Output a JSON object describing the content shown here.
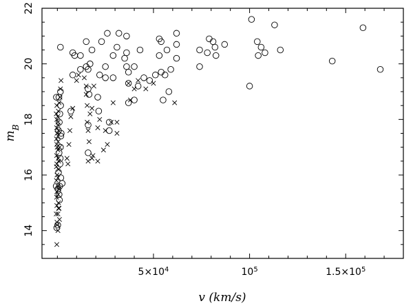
{
  "chart_data": {
    "type": "scatter",
    "title": "",
    "xlabel": "v (km/s)",
    "ylabel_main": "m",
    "ylabel_sub": "B",
    "xlim": [
      -8000,
      180000
    ],
    "ylim": [
      13,
      22
    ],
    "x_ticks": [
      {
        "value": 50000,
        "label": "5×10",
        "exp": "4"
      },
      {
        "value": 100000,
        "label": "10",
        "exp": "5"
      },
      {
        "value": 150000,
        "label": "1.5×10",
        "exp": "5"
      }
    ],
    "y_ticks": [
      {
        "value": 14,
        "label": "14"
      },
      {
        "value": 16,
        "label": "16"
      },
      {
        "value": 18,
        "label": "18"
      },
      {
        "value": 20,
        "label": "20"
      },
      {
        "value": 22,
        "label": "22"
      }
    ],
    "series": [
      {
        "marker": "circle",
        "points": [
          [
            -300,
            14.1
          ],
          [
            200,
            14.2
          ],
          [
            -600,
            15.6
          ],
          [
            300,
            15.5
          ],
          [
            1200,
            15.6
          ],
          [
            2500,
            15.7
          ],
          [
            900,
            15.3
          ],
          [
            1800,
            15.9
          ],
          [
            600,
            16.1
          ],
          [
            1400,
            16.4
          ],
          [
            900,
            16.8
          ],
          [
            1600,
            17.0
          ],
          [
            600,
            17.6
          ],
          [
            1800,
            17.4
          ],
          [
            1000,
            17.9
          ],
          [
            1300,
            18.2
          ],
          [
            1700,
            18.5
          ],
          [
            800,
            18.8
          ],
          [
            -500,
            18.8
          ],
          [
            1600,
            19.0
          ],
          [
            1600,
            20.6
          ],
          [
            2000,
            17.5
          ],
          [
            1500,
            16.6
          ],
          [
            1100,
            15.1
          ],
          [
            7000,
            18.3
          ],
          [
            9000,
            20.3
          ],
          [
            8000,
            20.4
          ],
          [
            12000,
            20.3
          ],
          [
            8000,
            19.6
          ],
          [
            12000,
            19.8
          ],
          [
            15000,
            20.8
          ],
          [
            15000,
            19.9
          ],
          [
            16000,
            19.8
          ],
          [
            16000,
            19.1
          ],
          [
            16500,
            18.9
          ],
          [
            16000,
            17.8
          ],
          [
            16000,
            16.8
          ],
          [
            17000,
            20.0
          ],
          [
            18000,
            20.5
          ],
          [
            21000,
            18.8
          ],
          [
            21500,
            18.3
          ],
          [
            22000,
            19.6
          ],
          [
            23000,
            20.8
          ],
          [
            25000,
            19.9
          ],
          [
            25000,
            19.5
          ],
          [
            26000,
            21.1
          ],
          [
            27000,
            17.9
          ],
          [
            27000,
            17.6
          ],
          [
            29000,
            19.5
          ],
          [
            29000,
            20.3
          ],
          [
            31000,
            20.6
          ],
          [
            32000,
            21.1
          ],
          [
            35000,
            20.2
          ],
          [
            36000,
            21.0
          ],
          [
            36000,
            20.4
          ],
          [
            36000,
            19.9
          ],
          [
            37000,
            19.7
          ],
          [
            37000,
            19.3
          ],
          [
            37000,
            18.6
          ],
          [
            40000,
            18.7
          ],
          [
            40000,
            19.9
          ],
          [
            42000,
            19.2
          ],
          [
            43000,
            20.5
          ],
          [
            45000,
            19.5
          ],
          [
            48000,
            19.4
          ],
          [
            51000,
            19.6
          ],
          [
            53000,
            20.9
          ],
          [
            53000,
            20.3
          ],
          [
            54000,
            19.7
          ],
          [
            54000,
            20.8
          ],
          [
            55000,
            18.7
          ],
          [
            56000,
            19.6
          ],
          [
            57000,
            20.5
          ],
          [
            58000,
            19.0
          ],
          [
            59000,
            19.8
          ],
          [
            62000,
            20.2
          ],
          [
            62000,
            20.7
          ],
          [
            62000,
            21.1
          ],
          [
            74000,
            20.5
          ],
          [
            74000,
            19.9
          ],
          [
            78000,
            20.4
          ],
          [
            79000,
            20.9
          ],
          [
            81000,
            20.8
          ],
          [
            82000,
            20.6
          ],
          [
            82500,
            20.3
          ],
          [
            87000,
            20.7
          ],
          [
            100000,
            19.2
          ],
          [
            101000,
            21.6
          ],
          [
            104000,
            20.8
          ],
          [
            104500,
            20.3
          ],
          [
            106000,
            20.6
          ],
          [
            108000,
            20.4
          ],
          [
            113000,
            21.4
          ],
          [
            116000,
            20.5
          ],
          [
            143000,
            20.1
          ],
          [
            159000,
            21.3
          ],
          [
            168000,
            19.8
          ]
        ]
      },
      {
        "marker": "cross",
        "points": [
          [
            -300,
            13.5
          ],
          [
            -200,
            14.3
          ],
          [
            300,
            14.0
          ],
          [
            -600,
            14.6
          ],
          [
            300,
            14.6
          ],
          [
            900,
            14.8
          ],
          [
            -300,
            14.9
          ],
          [
            600,
            15.0
          ],
          [
            -400,
            15.2
          ],
          [
            500,
            15.3
          ],
          [
            -300,
            15.4
          ],
          [
            300,
            15.6
          ],
          [
            -500,
            15.8
          ],
          [
            300,
            15.9
          ],
          [
            -200,
            16.0
          ],
          [
            600,
            16.2
          ],
          [
            -300,
            16.4
          ],
          [
            500,
            16.6
          ],
          [
            -400,
            16.7
          ],
          [
            300,
            16.9
          ],
          [
            -300,
            17.1
          ],
          [
            400,
            17.2
          ],
          [
            -500,
            17.3
          ],
          [
            300,
            17.4
          ],
          [
            -200,
            17.5
          ],
          [
            600,
            17.6
          ],
          [
            -400,
            17.7
          ],
          [
            400,
            17.9
          ],
          [
            -300,
            18.0
          ],
          [
            200,
            18.1
          ],
          [
            -600,
            18.2
          ],
          [
            500,
            18.3
          ],
          [
            -300,
            18.5
          ],
          [
            900,
            18.6
          ],
          [
            1400,
            18.8
          ],
          [
            1600,
            19.1
          ],
          [
            1900,
            19.4
          ],
          [
            1200,
            17.0
          ],
          [
            800,
            15.5
          ],
          [
            1100,
            14.4
          ],
          [
            -100,
            14.2
          ],
          [
            600,
            14.8
          ],
          [
            -500,
            16.3
          ],
          [
            700,
            16.5
          ],
          [
            -100,
            17.0
          ],
          [
            300,
            17.8
          ],
          [
            5000,
            16.6
          ],
          [
            5500,
            16.4
          ],
          [
            6000,
            17.1
          ],
          [
            6500,
            17.6
          ],
          [
            7000,
            18.1
          ],
          [
            8000,
            18.4
          ],
          [
            10000,
            19.4
          ],
          [
            11000,
            19.6
          ],
          [
            14000,
            19.5
          ],
          [
            15000,
            19.2
          ],
          [
            15000,
            18.9
          ],
          [
            15500,
            18.5
          ],
          [
            15500,
            17.9
          ],
          [
            16000,
            17.6
          ],
          [
            16500,
            17.2
          ],
          [
            16000,
            16.5
          ],
          [
            17000,
            18.2
          ],
          [
            18000,
            18.4
          ],
          [
            18000,
            16.6
          ],
          [
            18500,
            16.7
          ],
          [
            19000,
            19.2
          ],
          [
            21000,
            17.7
          ],
          [
            21000,
            16.5
          ],
          [
            22000,
            18.0
          ],
          [
            24000,
            16.9
          ],
          [
            25000,
            17.6
          ],
          [
            26000,
            17.1
          ],
          [
            28000,
            17.9
          ],
          [
            29000,
            18.6
          ],
          [
            31000,
            17.9
          ],
          [
            31000,
            17.5
          ],
          [
            37000,
            19.3
          ],
          [
            38000,
            18.7
          ],
          [
            40000,
            19.1
          ],
          [
            42000,
            19.4
          ],
          [
            46000,
            19.1
          ],
          [
            50000,
            19.3
          ],
          [
            61000,
            18.6
          ]
        ]
      }
    ]
  }
}
